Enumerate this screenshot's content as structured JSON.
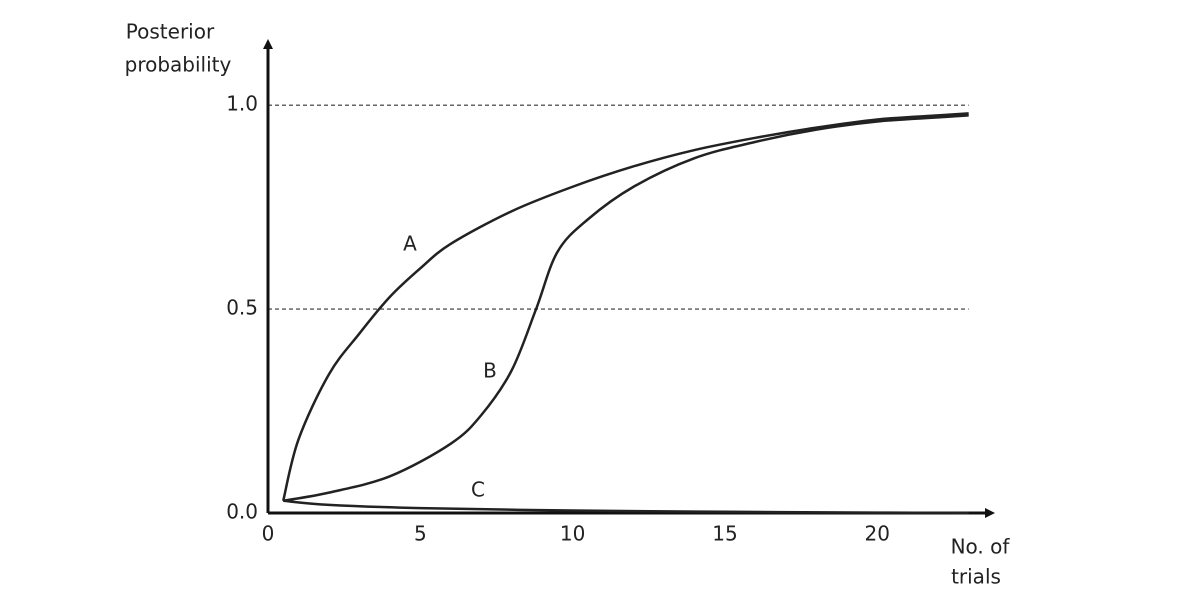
{
  "chart_data": {
    "type": "line",
    "y_label": [
      "Posterior",
      "probability"
    ],
    "x_label": [
      "No. of",
      "trials"
    ],
    "xlim": [
      0,
      23.7
    ],
    "ylim": [
      0,
      1.15
    ],
    "xticks": [
      0,
      5,
      10,
      15,
      20
    ],
    "yticks": [
      {
        "value": 0,
        "label": "0.0"
      },
      {
        "value": 0.5,
        "label": "0.5"
      },
      {
        "value": 1,
        "label": "1.0"
      }
    ],
    "grid": true,
    "series": [
      {
        "name": "A",
        "color": "#222222",
        "x": [
          0.5,
          1,
          2,
          3,
          4,
          5,
          6,
          8,
          10,
          12,
          14,
          16,
          18,
          20,
          22,
          23
        ],
        "values": [
          0.03,
          0.18,
          0.34,
          0.44,
          0.53,
          0.6,
          0.66,
          0.74,
          0.8,
          0.85,
          0.89,
          0.92,
          0.945,
          0.965,
          0.975,
          0.98
        ]
      },
      {
        "name": "B",
        "color": "#222222",
        "x": [
          0.5,
          2,
          4,
          6,
          7,
          8,
          8.8,
          9.5,
          10.5,
          12,
          14,
          16,
          18,
          20,
          22,
          23
        ],
        "values": [
          0.03,
          0.05,
          0.09,
          0.17,
          0.24,
          0.35,
          0.5,
          0.64,
          0.72,
          0.8,
          0.87,
          0.91,
          0.94,
          0.96,
          0.97,
          0.975
        ]
      },
      {
        "name": "C",
        "color": "#222222",
        "x": [
          0.5,
          2,
          5,
          10,
          15,
          20,
          23
        ],
        "values": [
          0.03,
          0.02,
          0.012,
          0.006,
          0.003,
          0.001,
          0
        ]
      }
    ]
  }
}
